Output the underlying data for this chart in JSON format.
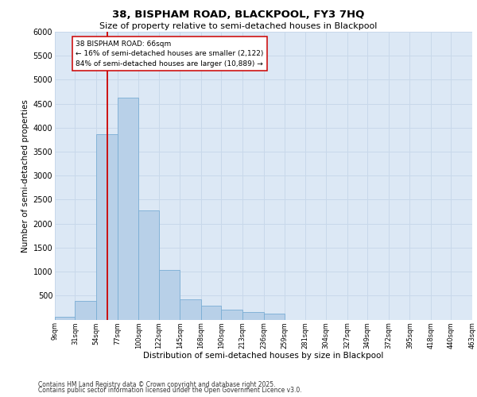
{
  "title_line1": "38, BISPHAM ROAD, BLACKPOOL, FY3 7HQ",
  "title_line2": "Size of property relative to semi-detached houses in Blackpool",
  "xlabel": "Distribution of semi-detached houses by size in Blackpool",
  "ylabel": "Number of semi-detached properties",
  "property_label": "38 BISPHAM ROAD: 66sqm",
  "pct_smaller": "← 16% of semi-detached houses are smaller (2,122)",
  "pct_larger": "84% of semi-detached houses are larger (10,889) →",
  "property_size": 66,
  "bin_edges": [
    9,
    31,
    54,
    77,
    100,
    122,
    145,
    168,
    190,
    213,
    236,
    259,
    281,
    304,
    327,
    349,
    372,
    395,
    418,
    440,
    463
  ],
  "bin_labels": [
    "9sqm",
    "31sqm",
    "54sqm",
    "77sqm",
    "100sqm",
    "122sqm",
    "145sqm",
    "168sqm",
    "190sqm",
    "213sqm",
    "236sqm",
    "259sqm",
    "281sqm",
    "304sqm",
    "327sqm",
    "349sqm",
    "372sqm",
    "395sqm",
    "418sqm",
    "440sqm",
    "463sqm"
  ],
  "bar_heights": [
    50,
    390,
    3860,
    4620,
    2270,
    1030,
    430,
    290,
    210,
    160,
    130,
    0,
    0,
    0,
    0,
    0,
    0,
    0,
    0,
    0
  ],
  "bar_color": "#b8d0e8",
  "bar_edge_color": "#7aadd4",
  "vline_color": "#cc0000",
  "vline_x": 66,
  "ylim": [
    0,
    6000
  ],
  "yticks": [
    0,
    500,
    1000,
    1500,
    2000,
    2500,
    3000,
    3500,
    4000,
    4500,
    5000,
    5500,
    6000
  ],
  "grid_color": "#c8d8ea",
  "bg_color": "#dce8f5",
  "footer_line1": "Contains HM Land Registry data © Crown copyright and database right 2025.",
  "footer_line2": "Contains public sector information licensed under the Open Government Licence v3.0."
}
